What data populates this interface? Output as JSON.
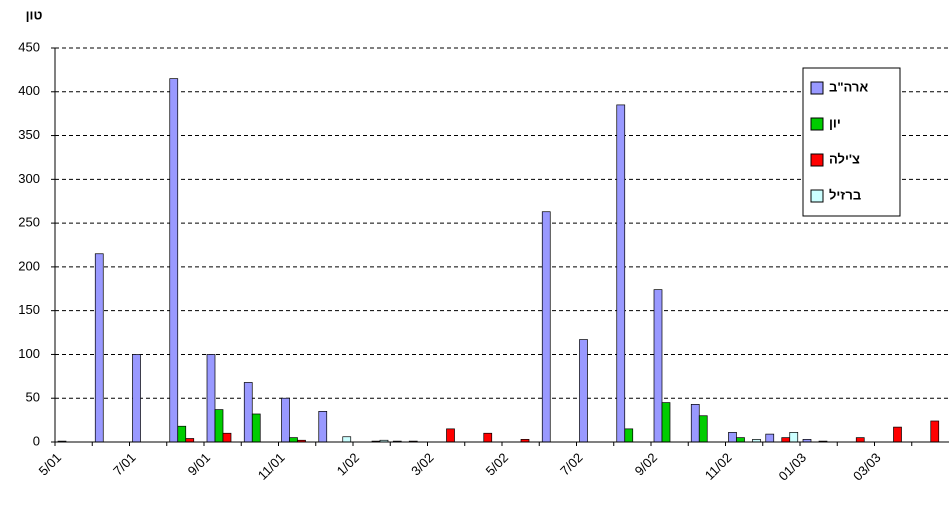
{
  "chart_data": {
    "type": "bar",
    "y_label": "טון",
    "categories": [
      "5/01",
      null,
      "7/01",
      null,
      "9/01",
      null,
      "11/01",
      null,
      "1/02",
      null,
      "3/02",
      null,
      "5/02",
      null,
      "7/02",
      null,
      "9/02",
      null,
      "11/02",
      null,
      "01/03",
      null,
      "03/03",
      null
    ],
    "series": [
      {
        "name": "ארה\"ב",
        "color": "#9999ff",
        "values": [
          1,
          215,
          100,
          415,
          100,
          68,
          50,
          35,
          0,
          1,
          0,
          0,
          0,
          263,
          117,
          385,
          174,
          43,
          11,
          9,
          3,
          0,
          0,
          0
        ]
      },
      {
        "name": "יון",
        "color": "#00cc00",
        "values": [
          0,
          0,
          0,
          18,
          37,
          32,
          5,
          0,
          0,
          0,
          0,
          0,
          0,
          0,
          0,
          15,
          45,
          30,
          5,
          0,
          0,
          0,
          0,
          0
        ]
      },
      {
        "name": "צ'ילה",
        "color": "#ff0000",
        "values": [
          0,
          0,
          0,
          4,
          10,
          0,
          2,
          0,
          1,
          1,
          15,
          10,
          3,
          0,
          0,
          0,
          0,
          0,
          0,
          5,
          1,
          5,
          17,
          24
        ]
      },
      {
        "name": "ברזיל",
        "color": "#ccffff",
        "values": [
          0,
          0,
          0,
          0,
          0,
          0,
          0,
          6,
          2,
          0,
          0,
          0,
          0,
          0,
          0,
          0,
          0,
          0,
          3,
          11,
          0,
          0,
          0,
          0
        ]
      }
    ],
    "ylim": [
      0,
      450
    ],
    "yticks": [
      0,
      50,
      100,
      150,
      200,
      250,
      300,
      350,
      400,
      450
    ],
    "grid": true,
    "legend": "top-right"
  }
}
